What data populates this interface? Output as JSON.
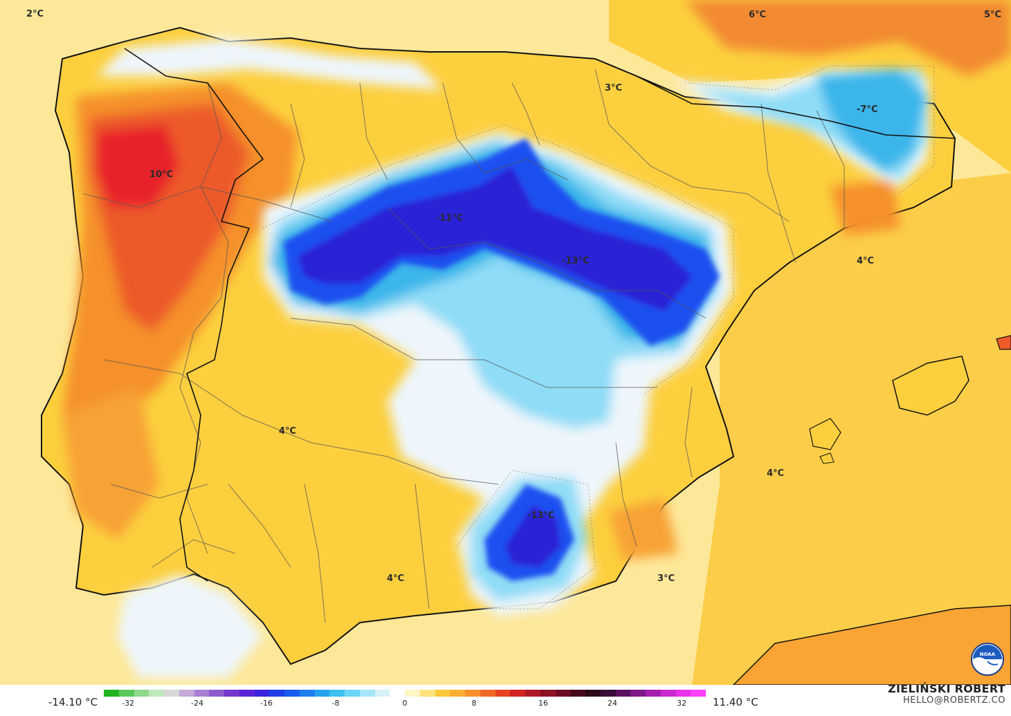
{
  "map": {
    "colors": {
      "sea_background": "#fde89a",
      "land_warm": "#fccf3e",
      "land_orange": "#fba737",
      "land_red": "#f05a2b",
      "land_hot": "#e8212c",
      "cold_white": "#eef6fc",
      "cold_light": "#8fdcf6",
      "cold_mid": "#3ab5ea",
      "cold_blue": "#1b4ff0",
      "cold_deep": "#2b21d6"
    },
    "labels": [
      {
        "id": "nw-corner",
        "text": "2°C"
      },
      {
        "id": "pyrenees-north",
        "text": "6°C"
      },
      {
        "id": "ne-corner",
        "text": "5°C"
      },
      {
        "id": "cantabria",
        "text": "3°C"
      },
      {
        "id": "ebro",
        "text": "-7°C"
      },
      {
        "id": "galicia",
        "text": "10°C"
      },
      {
        "id": "castilla",
        "text": "-11°C"
      },
      {
        "id": "iberico",
        "text": "-13°C"
      },
      {
        "id": "catalonia-coast",
        "text": "4°C"
      },
      {
        "id": "extremadura",
        "text": "4°C"
      },
      {
        "id": "balearic-sea",
        "text": "4°C"
      },
      {
        "id": "sierra-nevada",
        "text": "-13°C"
      },
      {
        "id": "andalucia",
        "text": "4°C"
      },
      {
        "id": "murcia",
        "text": "3°C"
      }
    ]
  },
  "legend": {
    "min": "-14.10 °C",
    "max": "11.40 °C",
    "ticks": [
      "-32",
      "-24",
      "-16",
      "-8",
      "0",
      "8",
      "16",
      "24",
      "32"
    ],
    "scale_colors": [
      "#22b41e",
      "#5ac85a",
      "#8ed88c",
      "#bfe8bd",
      "#d8d8d8",
      "#c3a8d8",
      "#a97fd4",
      "#8e5ad0",
      "#7436cc",
      "#5a22d8",
      "#3a22e0",
      "#1f3ee8",
      "#1a5cf0",
      "#1f7ef0",
      "#26a2ee",
      "#3ec0f0",
      "#6ad6f6",
      "#a4e6fa",
      "#d8f2fc",
      "#ffffff",
      "#fff6c8",
      "#ffe27a",
      "#fcc83a",
      "#fbae32",
      "#f7902a",
      "#f06a26",
      "#e84224",
      "#d42222",
      "#b01826",
      "#8c1224",
      "#6c0c24",
      "#4a0a1e",
      "#2a0818",
      "#3a0a3a",
      "#5a1060",
      "#801888",
      "#a620b0",
      "#cc28d0",
      "#ea30e8",
      "#ff40ff"
    ],
    "credit_name": "ZIELIŃSKI ROBERT",
    "credit_email": "HELLO@ROBERTZ.CO",
    "logo_text": "NOAA"
  }
}
